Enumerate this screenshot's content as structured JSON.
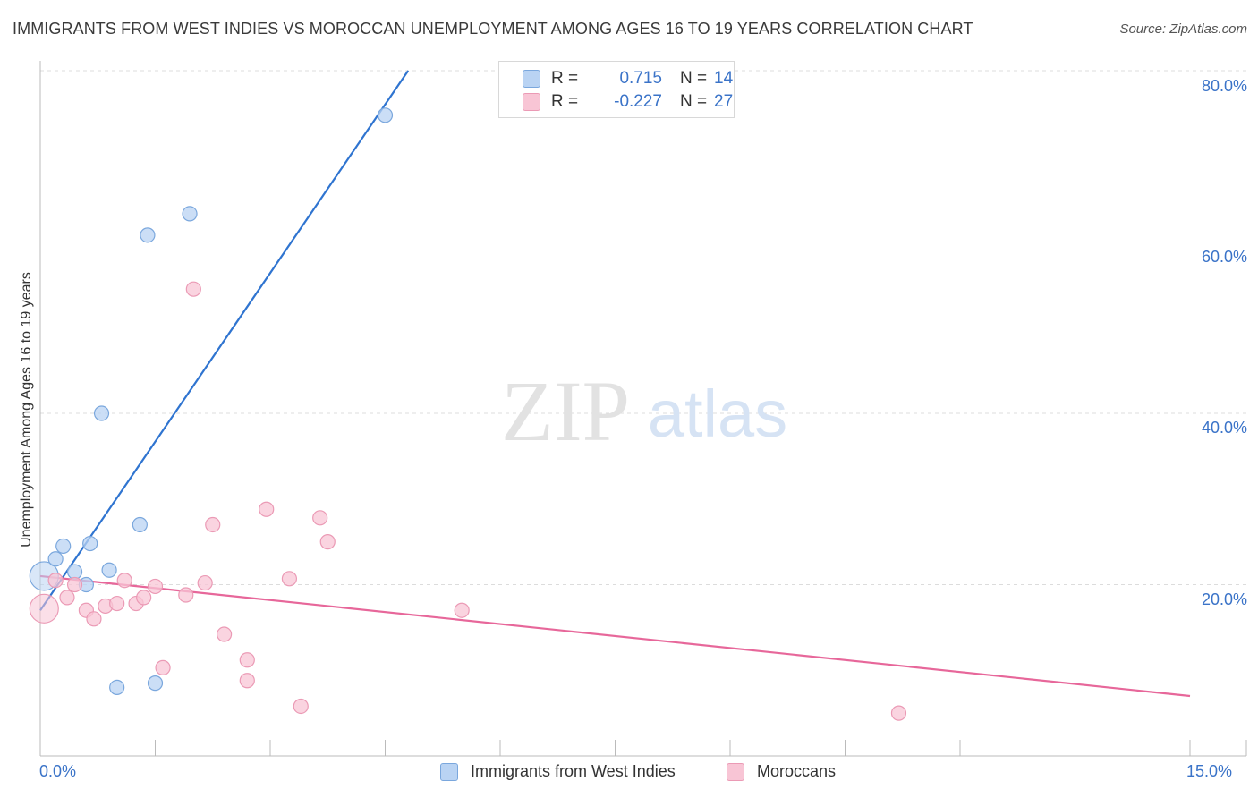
{
  "header": {
    "title": "IMMIGRANTS FROM WEST INDIES VS MOROCCAN UNEMPLOYMENT AMONG AGES 16 TO 19 YEARS CORRELATION CHART",
    "source": "Source: ZipAtlas.com"
  },
  "watermark": {
    "zip": "ZIP",
    "atlas": "atlas"
  },
  "legend": {
    "series1": {
      "r_label": "R =",
      "r_value": "0.715",
      "n_label": "N =",
      "n_value": "14"
    },
    "series2": {
      "r_label": "R =",
      "r_value": "-0.227",
      "n_label": "N =",
      "n_value": "27"
    }
  },
  "bottom_legend": {
    "series1": "Immigrants from West Indies",
    "series2": "Moroccans"
  },
  "axes": {
    "ylabel": "Unemployment Among Ages 16 to 19 years",
    "x_min_label": "0.0%",
    "x_max_label": "15.0%",
    "y_ticks": [
      "20.0%",
      "40.0%",
      "60.0%",
      "80.0%"
    ]
  },
  "colors": {
    "blue_fill": "#b9d3f3",
    "blue_stroke": "#7aa7dd",
    "blue_line": "#2f74d0",
    "pink_fill": "#f8c5d5",
    "pink_stroke": "#eb9ab5",
    "pink_line": "#e7679a",
    "axis_text": "#3a73c8"
  },
  "chart_data": {
    "type": "scatter",
    "title": "IMMIGRANTS FROM WEST INDIES VS MOROCCAN UNEMPLOYMENT AMONG AGES 16 TO 19 YEARS CORRELATION CHART",
    "xlabel": "",
    "ylabel": "Unemployment Among Ages 16 to 19 years",
    "xlim": [
      0,
      15
    ],
    "ylim": [
      0,
      80
    ],
    "grid": true,
    "series": [
      {
        "name": "Immigrants from West Indies",
        "R": 0.715,
        "N": 14,
        "points": [
          {
            "x": 0.05,
            "y": 21.0,
            "big": true
          },
          {
            "x": 0.2,
            "y": 23.0
          },
          {
            "x": 0.3,
            "y": 24.5
          },
          {
            "x": 0.45,
            "y": 21.5
          },
          {
            "x": 0.6,
            "y": 20.0
          },
          {
            "x": 0.65,
            "y": 24.8
          },
          {
            "x": 0.8,
            "y": 40.0
          },
          {
            "x": 0.9,
            "y": 21.7
          },
          {
            "x": 1.0,
            "y": 8.0
          },
          {
            "x": 1.3,
            "y": 27.0
          },
          {
            "x": 1.4,
            "y": 60.8
          },
          {
            "x": 1.5,
            "y": 8.5
          },
          {
            "x": 1.95,
            "y": 63.3
          },
          {
            "x": 4.5,
            "y": 74.8
          }
        ],
        "trendline": {
          "x": [
            0.0,
            4.8
          ],
          "y": [
            17.0,
            80.0
          ]
        }
      },
      {
        "name": "Moroccans",
        "R": -0.227,
        "N": 27,
        "points": [
          {
            "x": 0.05,
            "y": 17.2,
            "big": true
          },
          {
            "x": 0.2,
            "y": 20.5
          },
          {
            "x": 0.35,
            "y": 18.5
          },
          {
            "x": 0.45,
            "y": 20.0
          },
          {
            "x": 0.6,
            "y": 17.0
          },
          {
            "x": 0.7,
            "y": 16.0
          },
          {
            "x": 0.85,
            "y": 17.5
          },
          {
            "x": 1.0,
            "y": 17.8
          },
          {
            "x": 1.1,
            "y": 20.5
          },
          {
            "x": 1.25,
            "y": 17.8
          },
          {
            "x": 1.35,
            "y": 18.5
          },
          {
            "x": 1.5,
            "y": 19.8
          },
          {
            "x": 1.6,
            "y": 10.3
          },
          {
            "x": 1.9,
            "y": 18.8
          },
          {
            "x": 2.0,
            "y": 54.5
          },
          {
            "x": 2.15,
            "y": 20.2
          },
          {
            "x": 2.25,
            "y": 27.0
          },
          {
            "x": 2.4,
            "y": 14.2
          },
          {
            "x": 2.7,
            "y": 11.2
          },
          {
            "x": 2.7,
            "y": 8.8
          },
          {
            "x": 2.95,
            "y": 28.8
          },
          {
            "x": 3.25,
            "y": 20.7
          },
          {
            "x": 3.4,
            "y": 5.8
          },
          {
            "x": 3.65,
            "y": 27.8
          },
          {
            "x": 3.75,
            "y": 25.0
          },
          {
            "x": 5.5,
            "y": 17.0
          },
          {
            "x": 11.2,
            "y": 5.0
          }
        ],
        "trendline": {
          "x": [
            0.0,
            15.0
          ],
          "y": [
            21.0,
            7.0
          ]
        }
      }
    ]
  }
}
